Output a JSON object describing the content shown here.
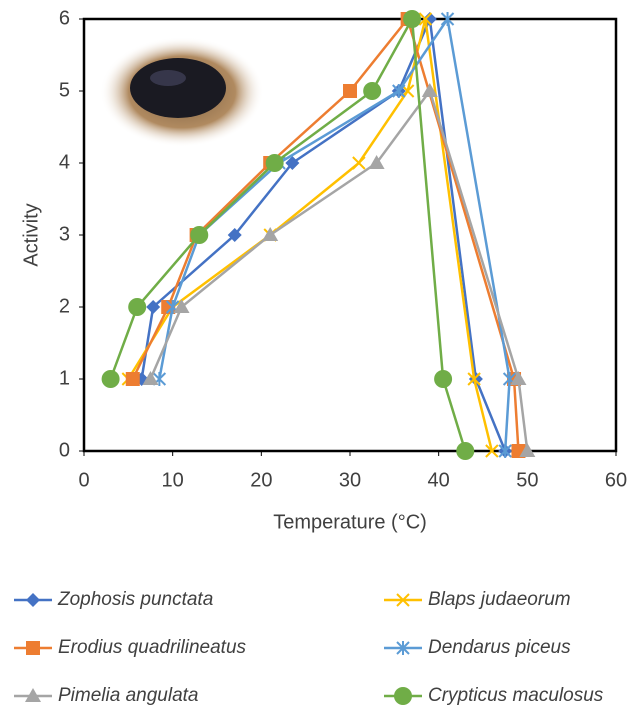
{
  "chart_data": {
    "type": "line",
    "x_label": "Temperature (°C)",
    "y_label": "Activity",
    "xlim": [
      0,
      60
    ],
    "xticks": [
      0,
      10,
      20,
      30,
      40,
      50,
      60
    ],
    "ylim": [
      0,
      6
    ],
    "yticks": [
      0,
      1,
      2,
      3,
      4,
      5,
      6
    ],
    "series": [
      {
        "name": "Zophosis punctata",
        "color": "#4472c4",
        "marker": "diamond",
        "x": [
          6.5,
          7.8,
          17,
          23.5,
          35.5,
          39,
          44.2,
          47.5
        ],
        "values": [
          1,
          2,
          3,
          4,
          5,
          6,
          1,
          0
        ]
      },
      {
        "name": "Blaps judaeorum",
        "color": "#ffc000",
        "marker": "x",
        "x": [
          5,
          10,
          21,
          31,
          36.5,
          38.5,
          44,
          46
        ],
        "values": [
          1,
          2,
          3,
          4,
          5,
          6,
          1,
          0
        ]
      },
      {
        "name": "Erodius quadrilineatus",
        "color": "#ed7d31",
        "marker": "square",
        "x": [
          5.5,
          9.5,
          12.7,
          21,
          30,
          36.5,
          48.5,
          49
        ],
        "values": [
          1,
          2,
          3,
          4,
          5,
          6,
          1,
          0
        ]
      },
      {
        "name": "Dendarus piceus",
        "color": "#5b9bd5",
        "marker": "asterisk",
        "x": [
          8.5,
          10,
          13,
          22,
          35.5,
          41,
          48,
          47.5
        ],
        "values": [
          1,
          2,
          3,
          4,
          5,
          6,
          1,
          0
        ]
      },
      {
        "name": "Pimelia angulata",
        "color": "#a5a5a5",
        "marker": "triangle",
        "x": [
          7.5,
          11,
          21,
          33,
          39,
          49,
          50
        ],
        "values": [
          1,
          2,
          3,
          4,
          5,
          1,
          0
        ]
      },
      {
        "name": "Crypticus maculosus",
        "color": "#70ad47",
        "marker": "circle",
        "x": [
          3,
          6,
          13,
          21.5,
          32.5,
          37,
          40.5,
          43
        ],
        "values": [
          1,
          2,
          3,
          4,
          5,
          6,
          1,
          0
        ]
      }
    ]
  }
}
